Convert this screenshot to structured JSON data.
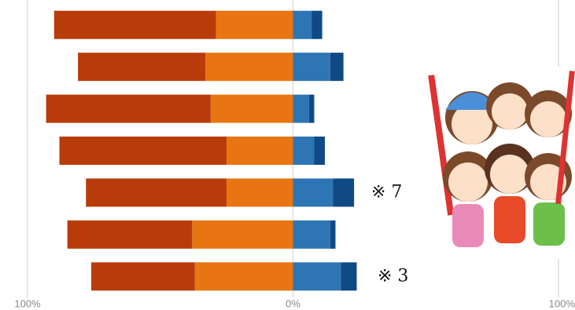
{
  "chart_data": {
    "type": "bar",
    "orientation": "horizontal",
    "stacked": true,
    "categories": [
      null,
      null,
      null,
      null,
      null,
      null,
      null
    ],
    "series": [
      {
        "color": "#e87511",
        "values": [
          -29,
          -33,
          -31,
          -25,
          -25,
          -38,
          -37
        ]
      },
      {
        "color": "#b83c0a",
        "values": [
          -61,
          -48,
          -62,
          -63,
          -53,
          -47,
          -39
        ]
      },
      {
        "color": "#2e75b6",
        "values": [
          7,
          14,
          6,
          8,
          15,
          14,
          18
        ]
      },
      {
        "color": "#0f4a85",
        "values": [
          4,
          5,
          2,
          4,
          8,
          2,
          6
        ]
      }
    ],
    "xlim": [
      -100,
      100
    ],
    "xticks": [
      {
        "value": -100,
        "label": "100%"
      },
      {
        "value": 0,
        "label": "0%"
      },
      {
        "value": 100,
        "label": "100%"
      }
    ],
    "grid": true,
    "annotations": [
      {
        "text": "※ 7",
        "row": 4
      },
      {
        "text": "※ 3",
        "row": 6
      }
    ]
  }
}
